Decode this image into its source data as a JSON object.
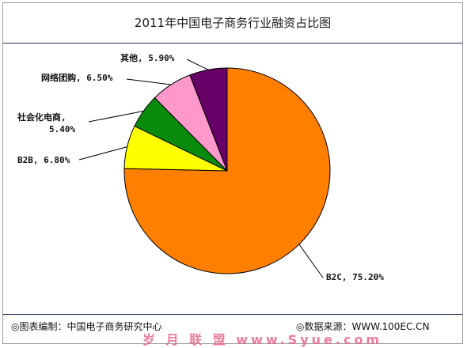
{
  "title": "2011年中国电子商务行业融资占比图",
  "footer": {
    "left": "◎图表编制：中国电子商务研究中心",
    "right": "◎数据来源：WWW.100EC.CN"
  },
  "watermark": "岁 月 联 盟  www.Syue.com",
  "chart_data": {
    "type": "pie",
    "title": "2011年中国电子商务行业融资占比图",
    "slices": [
      {
        "name": "B2C",
        "value": 75.2,
        "label": "B2C, 75.20%",
        "color": "#ff7f00"
      },
      {
        "name": "B2B",
        "value": 6.8,
        "label": "B2B, 6.80%",
        "color": "#ffff00"
      },
      {
        "name": "社会化电商",
        "value": 5.4,
        "label_lines": [
          "社会化电商,",
          "5.40%"
        ],
        "color": "#0a8a0a"
      },
      {
        "name": "网络团购",
        "value": 6.5,
        "label": "网络团购, 6.50%",
        "color": "#ff99cc"
      },
      {
        "name": "其他",
        "value": 5.9,
        "label": "其他, 5.90%",
        "color": "#660066"
      }
    ]
  }
}
